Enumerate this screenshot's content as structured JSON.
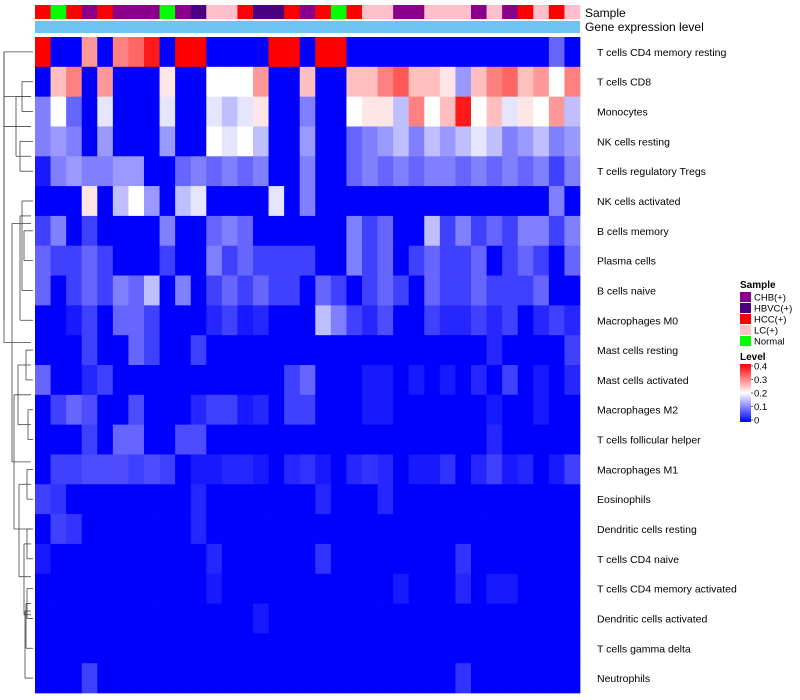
{
  "chart_data": {
    "type": "heatmap",
    "annotation_tracks": [
      "Sample",
      "Gene expression level"
    ],
    "gene_expression_color": "#6ec3f0",
    "rows": [
      "T cells CD4 memory resting",
      "T cells CD8",
      "Monocytes",
      "NK cells resting",
      "T cells regulatory  Tregs",
      "NK cells activated",
      "B cells memory",
      "Plasma cells",
      "B cells naive",
      "Macrophages M0",
      "Mast cells resting",
      "Mast cells activated",
      "Macrophages M2",
      "T cells follicular helper",
      "Macrophages M1",
      "Eosinophils",
      "Dendritic cells resting",
      "T cells CD4 naive",
      "T cells CD4 memory activated",
      "Dendritic cells activated",
      "T cells gamma delta",
      "Neutrophils"
    ],
    "samples": [
      "HCC(+)",
      "Normal",
      "HCC(+)",
      "CHB(+)",
      "HCC(+)",
      "CHB(+)",
      "CHB(+)",
      "CHB(+)",
      "Normal",
      "CHB(+)",
      "HBVC(+)",
      "LC(+)",
      "LC(+)",
      "HCC(+)",
      "HBVC(+)",
      "HBVC(+)",
      "HCC(+)",
      "CHB(+)",
      "HCC(+)",
      "Normal",
      "HCC(+)",
      "LC(+)",
      "LC(+)",
      "CHB(+)",
      "CHB(+)",
      "LC(+)",
      "LC(+)",
      "LC(+)",
      "CHB(+)",
      "LC(+)",
      "CHB(+)",
      "HCC(+)",
      "LC(+)",
      "HCC(+)",
      "LC(+)"
    ],
    "values": [
      [
        0.4,
        0.0,
        0.0,
        0.28,
        0.0,
        0.3,
        0.32,
        0.38,
        0.0,
        0.4,
        0.4,
        0.0,
        0.0,
        0.0,
        0.0,
        0.4,
        0.4,
        0.0,
        0.4,
        0.4,
        0.0,
        0.0,
        0.0,
        0.0,
        0.0,
        0.0,
        0.0,
        0.0,
        0.0,
        0.0,
        0.0,
        0.0,
        0.0,
        0.08,
        0.0
      ],
      [
        0.0,
        0.25,
        0.3,
        0.0,
        0.28,
        0.0,
        0.0,
        0.0,
        0.22,
        0.0,
        0.0,
        0.2,
        0.2,
        0.2,
        0.28,
        0.0,
        0.0,
        0.25,
        0.0,
        0.0,
        0.25,
        0.25,
        0.3,
        0.33,
        0.25,
        0.25,
        0.22,
        0.12,
        0.25,
        0.3,
        0.32,
        0.25,
        0.28,
        0.2,
        0.3
      ],
      [
        0.1,
        0.2,
        0.08,
        0.0,
        0.18,
        0.0,
        0.0,
        0.0,
        0.18,
        0.0,
        0.0,
        0.18,
        0.15,
        0.18,
        0.22,
        0.0,
        0.0,
        0.1,
        0.0,
        0.0,
        0.2,
        0.22,
        0.22,
        0.15,
        0.3,
        0.2,
        0.25,
        0.38,
        0.2,
        0.25,
        0.18,
        0.22,
        0.2,
        0.28,
        0.15
      ],
      [
        0.1,
        0.12,
        0.1,
        0.0,
        0.12,
        0.0,
        0.0,
        0.0,
        0.12,
        0.0,
        0.0,
        0.2,
        0.18,
        0.2,
        0.15,
        0.0,
        0.0,
        0.12,
        0.0,
        0.0,
        0.08,
        0.1,
        0.12,
        0.15,
        0.1,
        0.15,
        0.12,
        0.15,
        0.18,
        0.15,
        0.1,
        0.12,
        0.15,
        0.1,
        0.12
      ],
      [
        0.02,
        0.1,
        0.12,
        0.1,
        0.1,
        0.12,
        0.12,
        0.0,
        0.0,
        0.08,
        0.1,
        0.08,
        0.1,
        0.08,
        0.1,
        0.0,
        0.0,
        0.1,
        0.0,
        0.0,
        0.08,
        0.1,
        0.08,
        0.1,
        0.08,
        0.1,
        0.1,
        0.08,
        0.1,
        0.08,
        0.1,
        0.08,
        0.1,
        0.05,
        0.1
      ],
      [
        0.0,
        0.0,
        0.0,
        0.22,
        0.0,
        0.15,
        0.2,
        0.12,
        0.0,
        0.15,
        0.18,
        0.0,
        0.0,
        0.0,
        0.0,
        0.18,
        0.0,
        0.1,
        0.0,
        0.0,
        0.0,
        0.0,
        0.0,
        0.0,
        0.0,
        0.0,
        0.0,
        0.0,
        0.0,
        0.0,
        0.0,
        0.0,
        0.0,
        0.1,
        0.0
      ],
      [
        0.05,
        0.1,
        0.0,
        0.05,
        0.0,
        0.0,
        0.0,
        0.0,
        0.1,
        0.0,
        0.0,
        0.08,
        0.1,
        0.08,
        0.0,
        0.0,
        0.0,
        0.0,
        0.0,
        0.0,
        0.1,
        0.05,
        0.08,
        0.0,
        0.0,
        0.15,
        0.05,
        0.1,
        0.05,
        0.08,
        0.05,
        0.1,
        0.1,
        0.05,
        0.1
      ],
      [
        0.08,
        0.05,
        0.05,
        0.08,
        0.05,
        0.0,
        0.0,
        0.0,
        0.05,
        0.0,
        0.0,
        0.1,
        0.05,
        0.08,
        0.05,
        0.05,
        0.05,
        0.05,
        0.0,
        0.0,
        0.1,
        0.05,
        0.08,
        0.0,
        0.05,
        0.08,
        0.05,
        0.05,
        0.08,
        0.0,
        0.05,
        0.08,
        0.05,
        0.0,
        0.08
      ],
      [
        0.08,
        0.0,
        0.05,
        0.08,
        0.05,
        0.1,
        0.08,
        0.15,
        0.0,
        0.1,
        0.0,
        0.05,
        0.08,
        0.05,
        0.08,
        0.05,
        0.05,
        0.0,
        0.08,
        0.05,
        0.0,
        0.05,
        0.08,
        0.05,
        0.0,
        0.08,
        0.05,
        0.05,
        0.08,
        0.05,
        0.05,
        0.05,
        0.08,
        0.0,
        0.0
      ],
      [
        0.0,
        0.0,
        0.02,
        0.05,
        0.0,
        0.08,
        0.08,
        0.05,
        0.0,
        0.0,
        0.0,
        0.03,
        0.05,
        0.02,
        0.03,
        0.0,
        0.0,
        0.0,
        0.15,
        0.1,
        0.05,
        0.03,
        0.06,
        0.0,
        0.0,
        0.05,
        0.03,
        0.03,
        0.05,
        0.03,
        0.05,
        0.0,
        0.03,
        0.05,
        0.03
      ],
      [
        0.0,
        0.0,
        0.0,
        0.05,
        0.0,
        0.0,
        0.08,
        0.05,
        0.0,
        0.0,
        0.05,
        0.0,
        0.0,
        0.0,
        0.0,
        0.0,
        0.0,
        0.0,
        0.0,
        0.0,
        0.0,
        0.0,
        0.0,
        0.0,
        0.0,
        0.0,
        0.0,
        0.0,
        0.0,
        0.03,
        0.0,
        0.0,
        0.0,
        0.0,
        0.05
      ],
      [
        0.08,
        0.0,
        0.0,
        0.03,
        0.05,
        0.0,
        0.0,
        0.0,
        0.0,
        0.0,
        0.0,
        0.0,
        0.0,
        0.0,
        0.0,
        0.0,
        0.05,
        0.08,
        0.0,
        0.0,
        0.0,
        0.02,
        0.02,
        0.0,
        0.02,
        0.0,
        0.02,
        0.0,
        0.03,
        0.0,
        0.05,
        0.0,
        0.02,
        0.0,
        0.03
      ],
      [
        0.0,
        0.05,
        0.08,
        0.06,
        0.0,
        0.0,
        0.06,
        0.0,
        0.0,
        0.0,
        0.03,
        0.05,
        0.05,
        0.02,
        0.03,
        0.0,
        0.05,
        0.05,
        0.0,
        0.0,
        0.0,
        0.02,
        0.02,
        0.0,
        0.0,
        0.0,
        0.0,
        0.0,
        0.0,
        0.02,
        0.0,
        0.0,
        0.02,
        0.0,
        0.0
      ],
      [
        0.0,
        0.0,
        0.0,
        0.05,
        0.0,
        0.08,
        0.08,
        0.0,
        0.0,
        0.06,
        0.06,
        0.0,
        0.0,
        0.0,
        0.0,
        0.0,
        0.0,
        0.0,
        0.0,
        0.0,
        0.0,
        0.0,
        0.0,
        0.0,
        0.0,
        0.0,
        0.0,
        0.0,
        0.0,
        0.03,
        0.0,
        0.0,
        0.0,
        0.0,
        0.0
      ],
      [
        0.0,
        0.05,
        0.05,
        0.06,
        0.06,
        0.06,
        0.05,
        0.06,
        0.05,
        0.0,
        0.02,
        0.02,
        0.03,
        0.03,
        0.02,
        0.0,
        0.03,
        0.04,
        0.02,
        0.0,
        0.03,
        0.04,
        0.03,
        0.0,
        0.02,
        0.02,
        0.04,
        0.0,
        0.03,
        0.05,
        0.02,
        0.03,
        0.0,
        0.02,
        0.05
      ],
      [
        0.05,
        0.04,
        0.0,
        0.0,
        0.0,
        0.0,
        0.0,
        0.0,
        0.0,
        0.0,
        0.03,
        0.0,
        0.0,
        0.0,
        0.0,
        0.0,
        0.0,
        0.0,
        0.03,
        0.0,
        0.0,
        0.0,
        0.03,
        0.0,
        0.0,
        0.0,
        0.0,
        0.0,
        0.0,
        0.0,
        0.0,
        0.0,
        0.0,
        0.0,
        0.0
      ],
      [
        0.0,
        0.05,
        0.04,
        0.0,
        0.0,
        0.0,
        0.0,
        0.0,
        0.0,
        0.0,
        0.03,
        0.0,
        0.0,
        0.0,
        0.0,
        0.0,
        0.0,
        0.0,
        0.0,
        0.0,
        0.0,
        0.0,
        0.0,
        0.0,
        0.0,
        0.0,
        0.0,
        0.0,
        0.0,
        0.0,
        0.0,
        0.0,
        0.0,
        0.0,
        0.0
      ],
      [
        0.02,
        0.0,
        0.0,
        0.0,
        0.0,
        0.0,
        0.0,
        0.0,
        0.0,
        0.0,
        0.0,
        0.03,
        0.0,
        0.0,
        0.0,
        0.0,
        0.0,
        0.0,
        0.04,
        0.0,
        0.0,
        0.0,
        0.0,
        0.0,
        0.0,
        0.0,
        0.0,
        0.04,
        0.0,
        0.0,
        0.0,
        0.0,
        0.0,
        0.0,
        0.0
      ],
      [
        0.0,
        0.0,
        0.0,
        0.0,
        0.0,
        0.0,
        0.0,
        0.0,
        0.0,
        0.0,
        0.0,
        0.02,
        0.0,
        0.0,
        0.0,
        0.0,
        0.0,
        0.0,
        0.0,
        0.0,
        0.0,
        0.0,
        0.0,
        0.02,
        0.0,
        0.0,
        0.0,
        0.03,
        0.0,
        0.02,
        0.02,
        0.0,
        0.0,
        0.0,
        0.0
      ],
      [
        0.0,
        0.0,
        0.0,
        0.0,
        0.0,
        0.0,
        0.0,
        0.0,
        0.0,
        0.0,
        0.0,
        0.0,
        0.0,
        0.0,
        0.02,
        0.0,
        0.0,
        0.0,
        0.0,
        0.0,
        0.0,
        0.0,
        0.0,
        0.0,
        0.0,
        0.0,
        0.0,
        0.0,
        0.0,
        0.0,
        0.0,
        0.0,
        0.0,
        0.0,
        0.0
      ],
      [
        0.0,
        0.0,
        0.0,
        0.0,
        0.0,
        0.0,
        0.0,
        0.0,
        0.0,
        0.0,
        0.0,
        0.0,
        0.0,
        0.0,
        0.0,
        0.0,
        0.0,
        0.0,
        0.0,
        0.0,
        0.0,
        0.0,
        0.0,
        0.0,
        0.0,
        0.0,
        0.0,
        0.0,
        0.0,
        0.0,
        0.0,
        0.0,
        0.0,
        0.0,
        0.0
      ],
      [
        0.0,
        0.0,
        0.0,
        0.05,
        0.0,
        0.0,
        0.0,
        0.0,
        0.0,
        0.0,
        0.0,
        0.0,
        0.0,
        0.0,
        0.0,
        0.0,
        0.0,
        0.0,
        0.0,
        0.0,
        0.0,
        0.0,
        0.0,
        0.0,
        0.0,
        0.0,
        0.0,
        0.04,
        0.0,
        0.0,
        0.0,
        0.0,
        0.0,
        0.0,
        0.0
      ]
    ],
    "color_scale": {
      "min": 0,
      "max": 0.4,
      "low": "#0000ff",
      "mid": "#ffffff",
      "high": "#ff0000",
      "mid_value": 0.2
    },
    "legend": {
      "sample_title": "Sample",
      "sample_groups": [
        {
          "label": "CHB(+)",
          "color": "#8b008b"
        },
        {
          "label": "HBVC(+)",
          "color": "#4b0082"
        },
        {
          "label": "HCC(+)",
          "color": "#ff0000"
        },
        {
          "label": "LC(+)",
          "color": "#ffc0cb"
        },
        {
          "label": "Normal",
          "color": "#00ff00"
        }
      ],
      "level_title": "Level",
      "level_ticks": [
        "0.4",
        "0.3",
        "0.2",
        "0.1",
        "0"
      ]
    }
  }
}
